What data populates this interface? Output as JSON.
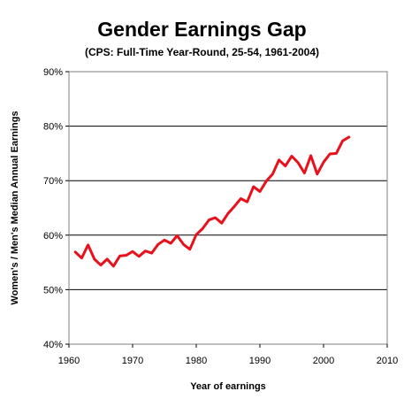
{
  "chart_data": {
    "type": "line",
    "title": "Gender Earnings Gap",
    "subtitle": "(CPS: Full-Time Year-Round, 25-54, 1961-2004)",
    "xlabel": "Year of earnings",
    "ylabel": "Women's / Men's Median Annual Earnings",
    "xlim": [
      1960,
      2010
    ],
    "ylim": [
      0.4,
      0.9
    ],
    "x_ticks": [
      "1960",
      "1970",
      "1980",
      "1990",
      "2000",
      "2010"
    ],
    "y_ticks": [
      "40%",
      "50%",
      "60%",
      "70%",
      "80%",
      "90%"
    ],
    "grid": "horizontal",
    "legend": "none",
    "series": [
      {
        "color": "#e8111b",
        "x": [
          1961,
          1962,
          1963,
          1964,
          1965,
          1966,
          1967,
          1968,
          1969,
          1970,
          1971,
          1972,
          1973,
          1974,
          1975,
          1976,
          1977,
          1978,
          1979,
          1980,
          1981,
          1982,
          1983,
          1984,
          1985,
          1986,
          1987,
          1988,
          1989,
          1990,
          1991,
          1992,
          1993,
          1994,
          1995,
          1996,
          1997,
          1998,
          1999,
          2000,
          2001,
          2002,
          2003,
          2004
        ],
        "values": [
          0.569,
          0.558,
          0.582,
          0.556,
          0.545,
          0.556,
          0.543,
          0.562,
          0.563,
          0.57,
          0.561,
          0.571,
          0.567,
          0.583,
          0.591,
          0.585,
          0.599,
          0.583,
          0.574,
          0.601,
          0.612,
          0.628,
          0.632,
          0.622,
          0.64,
          0.653,
          0.667,
          0.661,
          0.689,
          0.68,
          0.699,
          0.712,
          0.738,
          0.727,
          0.745,
          0.733,
          0.714,
          0.746,
          0.712,
          0.734,
          0.749,
          0.75,
          0.773,
          0.78
        ]
      }
    ]
  }
}
